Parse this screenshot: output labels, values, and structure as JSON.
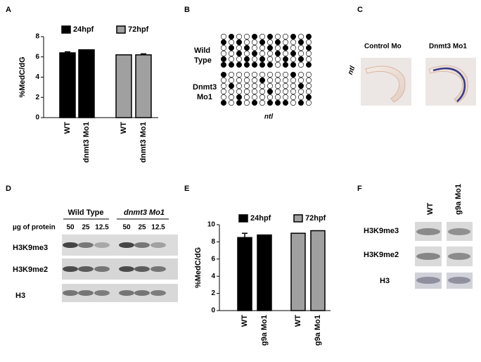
{
  "chart_data": [
    {
      "type": "bar",
      "ylabel": "%MedC/dG",
      "categories": [
        "WT",
        "dnmt3 Mo1",
        "WT",
        "dnmt3 Mo1"
      ],
      "series": [
        {
          "name": "24hpf",
          "color": "#000000",
          "values": [
            6.4,
            6.7,
            null,
            null
          ],
          "errors": [
            0.1,
            null,
            null,
            null
          ]
        },
        {
          "name": "72hpf",
          "color": "#a0a0a0",
          "values": [
            null,
            null,
            6.2,
            6.2
          ],
          "errors": [
            null,
            null,
            null,
            0.1
          ]
        }
      ],
      "ylim": [
        0,
        8
      ],
      "yticks": [
        0,
        2,
        4,
        6,
        8
      ]
    },
    {
      "type": "bar",
      "ylabel": "%MedC/dG",
      "categories": [
        "WT",
        "g9a Mo1",
        "WT",
        "g9a Mo1"
      ],
      "series": [
        {
          "name": "24hpf",
          "color": "#000000",
          "values": [
            8.5,
            8.8,
            null,
            null
          ],
          "errors": [
            0.5,
            null,
            null,
            null
          ]
        },
        {
          "name": "72hpf",
          "color": "#a0a0a0",
          "values": [
            null,
            null,
            9.0,
            9.3
          ],
          "errors": [
            null,
            null,
            null,
            null
          ]
        }
      ],
      "ylim": [
        0,
        10
      ],
      "yticks": [
        0,
        2,
        4,
        6,
        8,
        10
      ]
    }
  ],
  "panels": {
    "letters": [
      "A",
      "B",
      "C",
      "D",
      "E",
      "F"
    ],
    "B": {
      "row_labels": [
        [
          "Wild",
          "Type"
        ],
        [
          "Dnmt3",
          "Mo1"
        ]
      ],
      "gene": "ntl"
    },
    "C": {
      "gene": "ntl",
      "labels": [
        "Control Mo",
        "Dnmt3 Mo1"
      ]
    },
    "D": {
      "groups": [
        "Wild Type",
        "dnmt3 Mo1"
      ],
      "amount_label": "µg of protein",
      "amounts": [
        50,
        25,
        12.5,
        50,
        25,
        12.5
      ],
      "rows": [
        "H3K9me3",
        "H3K9me2",
        "H3"
      ]
    },
    "F": {
      "lanes": [
        "WT",
        "g9a Mo1"
      ],
      "rows": [
        "H3K9me3",
        "H3K9me2",
        "H3"
      ]
    }
  }
}
